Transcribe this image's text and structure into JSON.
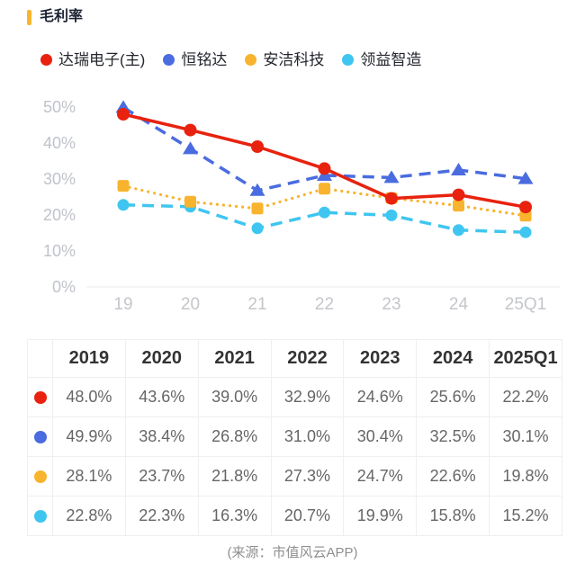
{
  "header": {
    "title": "毛利率"
  },
  "chart_data": {
    "type": "line",
    "title": "毛利率",
    "categories": [
      "19",
      "20",
      "21",
      "22",
      "23",
      "24",
      "25Q1"
    ],
    "y_unit": "%",
    "ylim": [
      0,
      50
    ],
    "yticks": [
      0,
      10,
      20,
      30,
      40,
      50
    ],
    "grid": false,
    "legend_position": "top",
    "series": [
      {
        "name": "达瑞电子(主)",
        "color": "#e8220e",
        "line_style": "solid",
        "marker": "circle",
        "values": [
          48.0,
          43.6,
          39.0,
          32.9,
          24.6,
          25.6,
          22.2
        ]
      },
      {
        "name": "恒铭达",
        "color": "#4a6ce0",
        "line_style": "dashed",
        "marker": "triangle",
        "values": [
          49.9,
          38.4,
          26.8,
          31.0,
          30.4,
          32.5,
          30.1
        ]
      },
      {
        "name": "安洁科技",
        "color": "#f8b42e",
        "line_style": "dotted",
        "marker": "square",
        "values": [
          28.1,
          23.7,
          21.8,
          27.3,
          24.7,
          22.6,
          19.8
        ]
      },
      {
        "name": "领益智造",
        "color": "#3fc6f0",
        "line_style": "dashed",
        "marker": "circle",
        "values": [
          22.8,
          22.3,
          16.3,
          20.7,
          19.9,
          15.8,
          15.2
        ]
      }
    ]
  },
  "table": {
    "headers": [
      "",
      "2019",
      "2020",
      "2021",
      "2022",
      "2023",
      "2024",
      "2025Q1"
    ],
    "rows": [
      {
        "series": "达瑞电子(主)",
        "dot_color": "#e8220e",
        "values": [
          "48.0%",
          "43.6%",
          "39.0%",
          "32.9%",
          "24.6%",
          "25.6%",
          "22.2%"
        ]
      },
      {
        "series": "恒铭达",
        "dot_color": "#4a6ce0",
        "values": [
          "49.9%",
          "38.4%",
          "26.8%",
          "31.0%",
          "30.4%",
          "32.5%",
          "30.1%"
        ]
      },
      {
        "series": "安洁科技",
        "dot_color": "#f8b42e",
        "values": [
          "28.1%",
          "23.7%",
          "21.8%",
          "27.3%",
          "24.7%",
          "22.6%",
          "19.8%"
        ]
      },
      {
        "series": "领益智造",
        "dot_color": "#3fc6f0",
        "values": [
          "22.8%",
          "22.3%",
          "16.3%",
          "20.7%",
          "19.9%",
          "15.8%",
          "15.2%"
        ]
      }
    ]
  },
  "footer": {
    "source": "(来源：市值风云APP)"
  }
}
